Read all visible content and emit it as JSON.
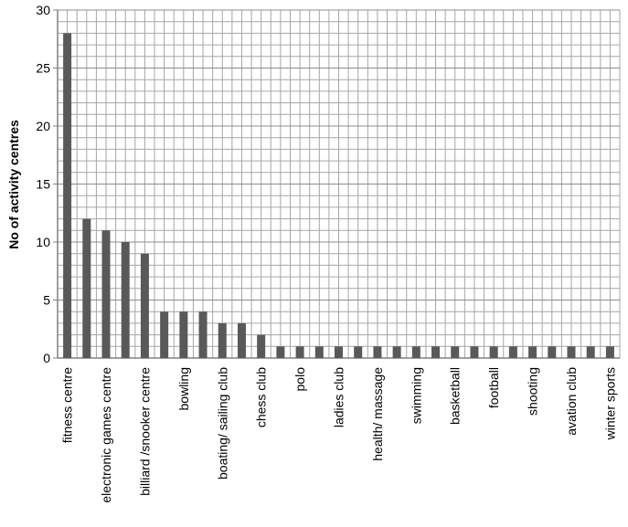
{
  "chart_data": {
    "type": "bar",
    "y_label": "No of activity centres",
    "categories": [
      "fitness centre",
      null,
      "electronic games centre",
      null,
      "billiard /snooker centre",
      null,
      "bowling",
      null,
      "boating/ sailing club",
      null,
      "chess club",
      null,
      "polo",
      null,
      "ladies club",
      null,
      "health/ massage",
      null,
      "swimming",
      null,
      "basketball",
      null,
      "football",
      null,
      "shooting",
      null,
      "avation club",
      null,
      "winter sports"
    ],
    "values": [
      28,
      12,
      11,
      10,
      9,
      4,
      4,
      4,
      3,
      3,
      2,
      1,
      1,
      1,
      1,
      1,
      1,
      1,
      1,
      1,
      1,
      1,
      1,
      1,
      1,
      1,
      1,
      1,
      1
    ],
    "color": "#595959",
    "ylim": [
      0,
      30
    ],
    "yticks": [
      0,
      5,
      10,
      15,
      20,
      25,
      30
    ],
    "grid": true
  }
}
